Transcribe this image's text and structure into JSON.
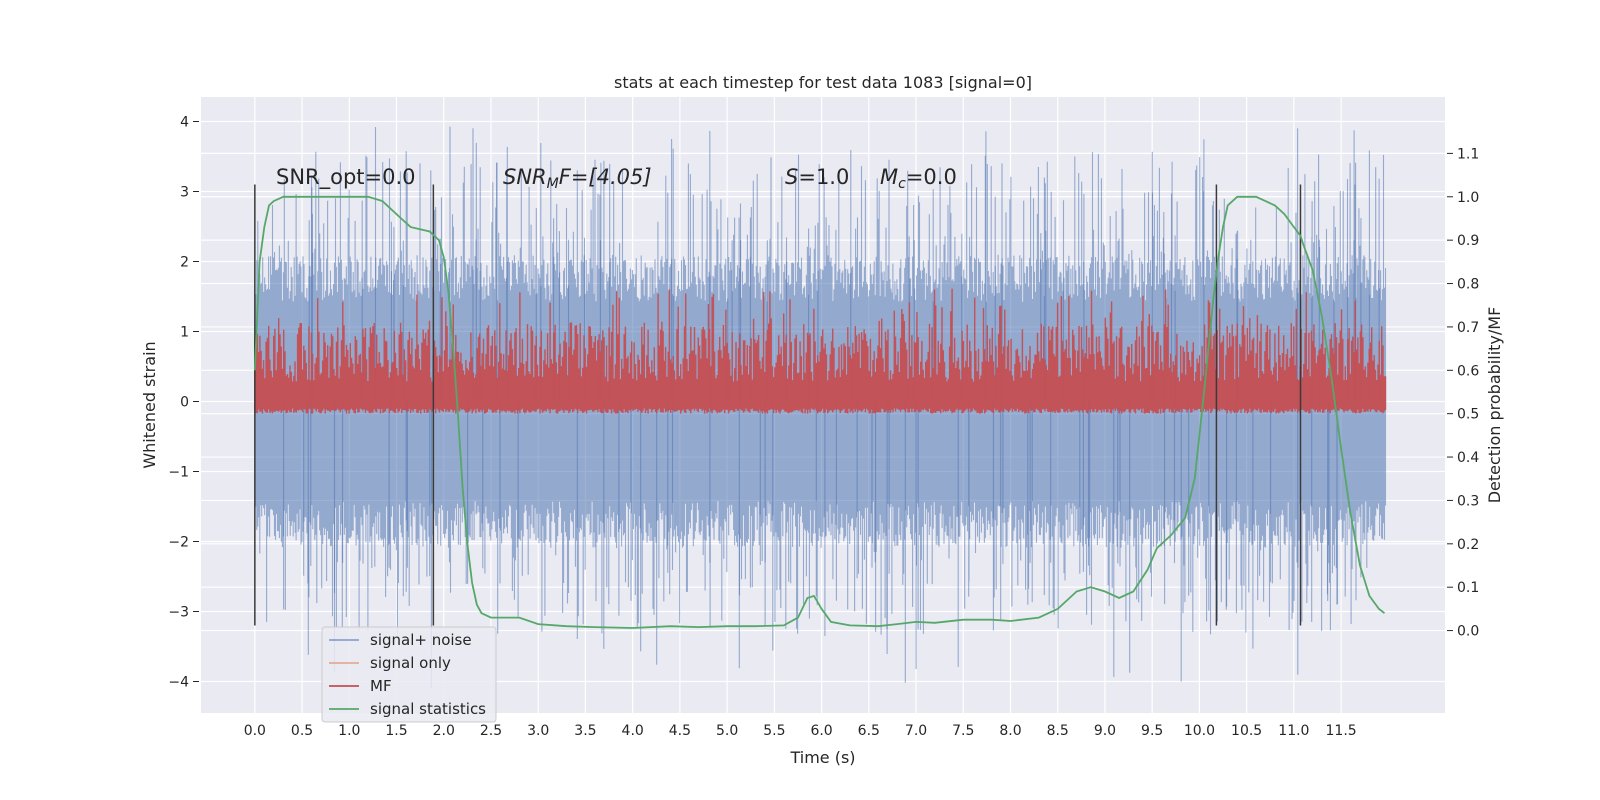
{
  "chart_data": {
    "type": "line",
    "title": "stats at each timestep for test data 1083 [signal=0]",
    "xlabel": "Time (s)",
    "ylabel": "Whitened strain",
    "y2label": "Detection probability/MF",
    "xlim": [
      -0.57,
      12.6
    ],
    "ylim": [
      -4.45,
      4.35
    ],
    "y2lim": [
      -0.19,
      1.23
    ],
    "x_ticks": [
      "0.0",
      "0.5",
      "1.0",
      "1.5",
      "2.0",
      "2.5",
      "3.0",
      "3.5",
      "4.0",
      "4.5",
      "5.0",
      "5.5",
      "6.0",
      "6.5",
      "7.0",
      "7.5",
      "8.0",
      "8.5",
      "9.0",
      "9.5",
      "10.0",
      "10.5",
      "11.0",
      "11.5"
    ],
    "y_ticks": [
      "−4",
      "−3",
      "−2",
      "−1",
      "0",
      "1",
      "2",
      "3",
      "4"
    ],
    "y2_ticks": [
      "0.0",
      "0.1",
      "0.2",
      "0.3",
      "0.4",
      "0.5",
      "0.6",
      "0.7",
      "0.8",
      "0.9",
      "1.0",
      "1.1"
    ],
    "grid": true,
    "legend_position": "lower-left",
    "annotations": {
      "snr_opt": "SNR_opt=0.0",
      "snr_mf_base": "SNR",
      "snr_mf_sub": "M",
      "snr_mf_tail": "F=[4.05]",
      "s_label": "S",
      "s_value": "=1.0",
      "mc_label": "M",
      "mc_sub": "c",
      "mc_value": "=0.0"
    },
    "vertical_lines_x": [
      0.0,
      1.89,
      10.18,
      11.07
    ],
    "series": [
      {
        "name": "signal+ noise",
        "color": "#4c72b0",
        "band": {
          "x_range": [
            0.0,
            11.97
          ],
          "core_low": -1.9,
          "core_high": 1.9,
          "spike_max": 4.0,
          "spike_min": -4.1
        }
      },
      {
        "name": "signal only",
        "color": "#dd8452",
        "values_note": ""
      },
      {
        "name": "MF",
        "color": "#c44e52",
        "axis": "right",
        "band": {
          "x_range": [
            0.0,
            11.97
          ],
          "low": 0.5,
          "high": 0.71,
          "spike_max": 0.79
        }
      },
      {
        "name": "signal statistics",
        "color": "#55a868",
        "axis": "right",
        "x": [
          0.0,
          0.05,
          0.1,
          0.15,
          0.2,
          0.3,
          0.5,
          0.8,
          1.0,
          1.2,
          1.35,
          1.45,
          1.55,
          1.65,
          1.75,
          1.85,
          1.95,
          2.0,
          2.05,
          2.1,
          2.15,
          2.2,
          2.25,
          2.3,
          2.35,
          2.4,
          2.5,
          2.6,
          2.8,
          3.0,
          3.3,
          3.6,
          4.0,
          4.4,
          4.7,
          5.0,
          5.3,
          5.6,
          5.75,
          5.85,
          5.92,
          6.0,
          6.1,
          6.3,
          6.6,
          6.8,
          7.0,
          7.2,
          7.5,
          7.8,
          8.0,
          8.3,
          8.5,
          8.7,
          8.85,
          9.0,
          9.15,
          9.3,
          9.45,
          9.55,
          9.7,
          9.85,
          9.95,
          10.05,
          10.15,
          10.2,
          10.25,
          10.3,
          10.4,
          10.5,
          10.6,
          10.7,
          10.8,
          10.9,
          11.0,
          11.07,
          11.1,
          11.2,
          11.3,
          11.4,
          11.5,
          11.6,
          11.7,
          11.8,
          11.9,
          11.96
        ],
        "values": [
          0.6,
          0.85,
          0.93,
          0.98,
          0.99,
          1.0,
          1.0,
          1.0,
          1.0,
          1.0,
          0.99,
          0.97,
          0.95,
          0.93,
          0.925,
          0.92,
          0.9,
          0.86,
          0.78,
          0.65,
          0.5,
          0.33,
          0.2,
          0.11,
          0.06,
          0.04,
          0.03,
          0.03,
          0.03,
          0.015,
          0.01,
          0.008,
          0.006,
          0.01,
          0.008,
          0.01,
          0.01,
          0.012,
          0.03,
          0.075,
          0.08,
          0.05,
          0.02,
          0.012,
          0.01,
          0.015,
          0.02,
          0.018,
          0.025,
          0.025,
          0.022,
          0.03,
          0.05,
          0.09,
          0.1,
          0.09,
          0.075,
          0.09,
          0.14,
          0.19,
          0.22,
          0.26,
          0.35,
          0.55,
          0.77,
          0.86,
          0.93,
          0.98,
          1.0,
          1.0,
          1.0,
          0.99,
          0.98,
          0.96,
          0.93,
          0.91,
          0.89,
          0.83,
          0.72,
          0.58,
          0.42,
          0.27,
          0.15,
          0.08,
          0.05,
          0.04
        ]
      }
    ]
  }
}
